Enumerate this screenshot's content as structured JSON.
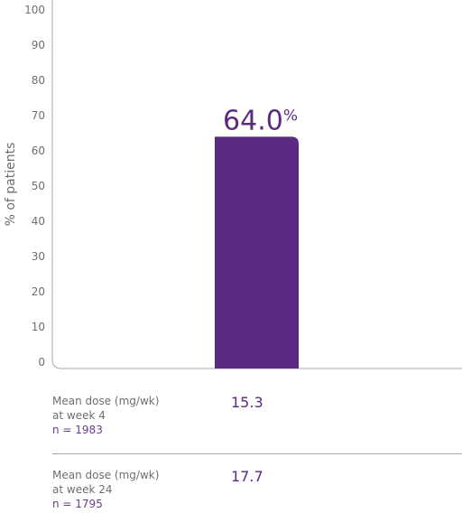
{
  "chart_data": {
    "type": "bar",
    "ylabel": "% of patients",
    "ylim": [
      0,
      100
    ],
    "yticks": [
      "0",
      "10",
      "20",
      "30",
      "40",
      "50",
      "60",
      "70",
      "80",
      "90",
      "100"
    ],
    "values": [
      64.0
    ],
    "value_label": "64.0",
    "value_unit": "%",
    "bar_color": "#5a2a82"
  },
  "dose_table": [
    {
      "label_line1": "Mean dose (mg/wk)",
      "label_line2": "at week 4",
      "n": "n = 1983",
      "value": "15.3"
    },
    {
      "label_line1": "Mean dose (mg/wk)",
      "label_line2": "at week 24",
      "n": "n = 1795",
      "value": "17.7"
    }
  ]
}
